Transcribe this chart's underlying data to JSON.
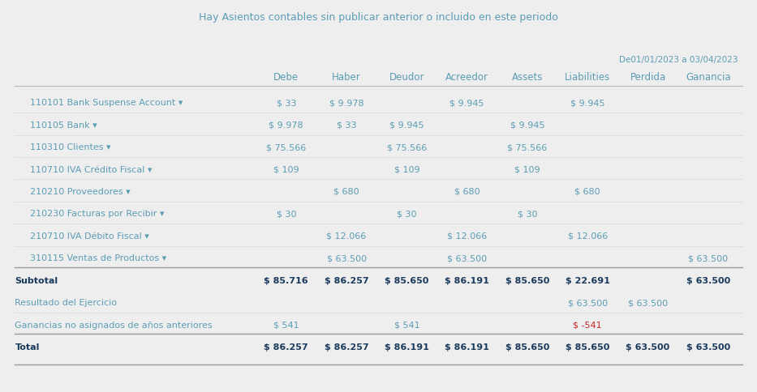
{
  "banner_text": "Hay ",
  "banner_bold": "Asientos contables sin publicar",
  "banner_rest": " anterior o incluido en este periodo",
  "banner_bg": "#d6eef5",
  "banner_text_color": "#5b9db5",
  "date_range": "De01/01/2023 a 03/04/2023",
  "columns": [
    "Debe",
    "Haber",
    "Deudor",
    "Acreedor",
    "Assets",
    "Liabilities",
    "Perdida",
    "Ganancia"
  ],
  "col_header_color": "#5b9db5",
  "row_label_color": "#5b9db5",
  "bold_row_color": "#1a3a5c",
  "table_bg": "#ffffff",
  "outer_bg": "#eeeeee",
  "rows": [
    {
      "label": "110101 Bank Suspense Account ▾",
      "label_indent": true,
      "values": [
        "$ 33",
        "$ 9.978",
        "",
        "$ 9.945",
        "",
        "$ 9.945",
        "",
        ""
      ],
      "bold": false
    },
    {
      "label": "110105 Bank ▾",
      "label_indent": true,
      "values": [
        "$ 9.978",
        "$ 33",
        "$ 9.945",
        "",
        "$ 9.945",
        "",
        "",
        ""
      ],
      "bold": false
    },
    {
      "label": "110310 Clientes ▾",
      "label_indent": true,
      "values": [
        "$ 75.566",
        "",
        "$ 75.566",
        "",
        "$ 75.566",
        "",
        "",
        ""
      ],
      "bold": false
    },
    {
      "label": "110710 IVA Crédito Fiscal ▾",
      "label_indent": true,
      "values": [
        "$ 109",
        "",
        "$ 109",
        "",
        "$ 109",
        "",
        "",
        ""
      ],
      "bold": false
    },
    {
      "label": "210210 Proveedores ▾",
      "label_indent": true,
      "values": [
        "",
        "$ 680",
        "",
        "$ 680",
        "",
        "$ 680",
        "",
        ""
      ],
      "bold": false
    },
    {
      "label": "210230 Facturas por Recibir ▾",
      "label_indent": true,
      "values": [
        "$ 30",
        "",
        "$ 30",
        "",
        "$ 30",
        "",
        "",
        ""
      ],
      "bold": false
    },
    {
      "label": "210710 IVA Débito Fiscal ▾",
      "label_indent": true,
      "values": [
        "",
        "$ 12.066",
        "",
        "$ 12.066",
        "",
        "$ 12.066",
        "",
        ""
      ],
      "bold": false
    },
    {
      "label": "310115 Ventas de Productos ▾",
      "label_indent": true,
      "values": [
        "",
        "$ 63.500",
        "",
        "$ 63.500",
        "",
        "",
        "",
        "$ 63.500"
      ],
      "bold": false
    },
    {
      "label": "Subtotal",
      "label_indent": false,
      "values": [
        "$ 85.716",
        "$ 86.257",
        "$ 85.650",
        "$ 86.191",
        "$ 85.650",
        "$ 22.691",
        "",
        "$ 63.500"
      ],
      "bold": true,
      "top_line": true
    },
    {
      "label": "Resultado del Ejercicio",
      "label_indent": false,
      "values": [
        "",
        "",
        "",
        "",
        "",
        "$ 63.500",
        "$ 63.500",
        ""
      ],
      "bold": false
    },
    {
      "label": "Ganancias no asignados de años anteriores",
      "label_indent": false,
      "values": [
        "$ 541",
        "",
        "$ 541",
        "",
        "",
        "$ -541",
        "",
        ""
      ],
      "bold": false,
      "special_color_col": 5,
      "special_color": "#cc2222"
    },
    {
      "label": "Total",
      "label_indent": false,
      "values": [
        "$ 86.257",
        "$ 86.257",
        "$ 86.191",
        "$ 86.191",
        "$ 85.650",
        "$ 85.650",
        "$ 63.500",
        "$ 63.500"
      ],
      "bold": true,
      "top_line": true
    }
  ]
}
